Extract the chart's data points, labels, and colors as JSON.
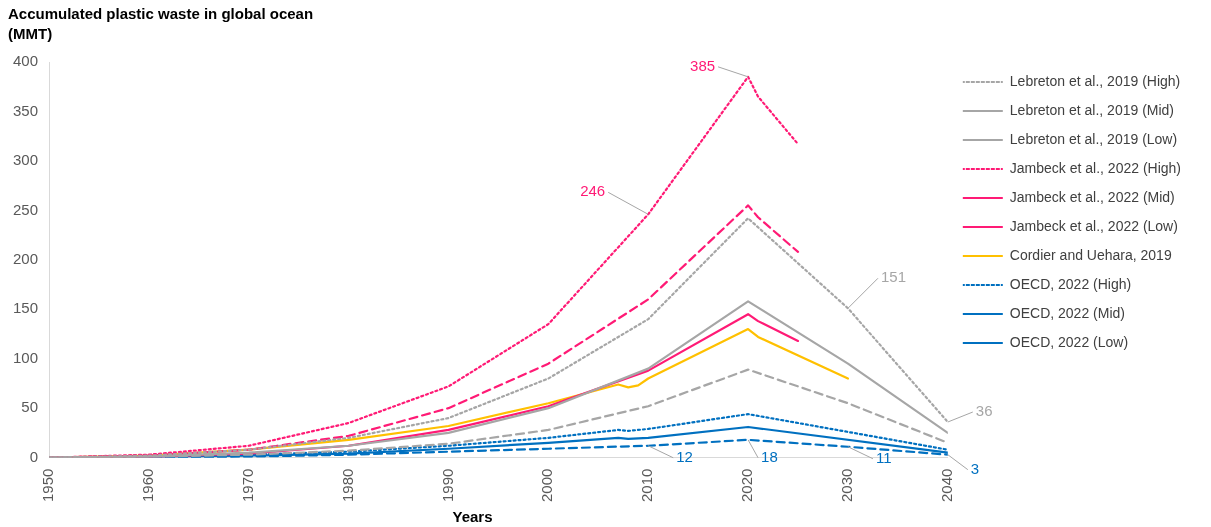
{
  "chart_data": {
    "type": "line",
    "ylabel": "Accumulated plastic waste in global ocean (MMT)",
    "xlabel": "Years",
    "xlim": [
      1950,
      2040
    ],
    "xticks": [
      1950,
      1960,
      1970,
      1980,
      1990,
      2000,
      2010,
      2020,
      2030,
      2040
    ],
    "ylim": [
      0,
      400
    ],
    "yticks": [
      0,
      50,
      100,
      150,
      200,
      250,
      300,
      350,
      400
    ],
    "grid": false,
    "legend": "right",
    "marker": "none",
    "series": [
      {
        "name": "Lebreton et al., 2019 (High)",
        "color": "#a6a6a6",
        "line_style": "dotted",
        "x": [
          1950,
          1960,
          1970,
          1980,
          1990,
          2000,
          2010,
          2020,
          2030,
          2040
        ],
        "values": [
          0,
          2,
          8,
          20,
          40,
          80,
          140,
          242,
          151,
          36
        ]
      },
      {
        "name": "Lebreton et al., 2019 (Mid)",
        "color": "#a6a6a6",
        "line_style": "solid",
        "x": [
          1950,
          1960,
          1970,
          1980,
          1990,
          2000,
          2010,
          2020,
          2030,
          2040
        ],
        "values": [
          0,
          1,
          5,
          12,
          25,
          50,
          90,
          158,
          95,
          25
        ]
      },
      {
        "name": "Lebreton et al., 2019 (Low)",
        "color": "#a6a6a6",
        "line_style": "dashed",
        "x": [
          1950,
          1960,
          1970,
          1980,
          1990,
          2000,
          2010,
          2020,
          2030,
          2040
        ],
        "values": [
          0,
          1,
          3,
          7,
          14,
          28,
          52,
          89,
          55,
          15
        ]
      },
      {
        "name": "Jambeck et al., 2022 (High)",
        "color": "#ff1a75",
        "line_style": "dotted",
        "x": [
          1950,
          1960,
          1970,
          1980,
          1990,
          2000,
          2010,
          2020,
          2021,
          2025
        ],
        "values": [
          0,
          3,
          12,
          35,
          72,
          135,
          246,
          385,
          365,
          317
        ]
      },
      {
        "name": "Jambeck et al., 2022 (Mid)",
        "color": "#ff1a75",
        "line_style": "dashed",
        "x": [
          1950,
          1960,
          1970,
          1980,
          1990,
          2000,
          2010,
          2020,
          2021,
          2025
        ],
        "values": [
          0,
          2,
          8,
          22,
          50,
          95,
          160,
          255,
          243,
          208
        ]
      },
      {
        "name": "Jambeck et al., 2022 (Low)",
        "color": "#ff1a75",
        "line_style": "solid",
        "x": [
          1950,
          1960,
          1970,
          1980,
          1990,
          2000,
          2010,
          2020,
          2021,
          2025
        ],
        "values": [
          0,
          1,
          4,
          12,
          28,
          52,
          88,
          145,
          138,
          118
        ]
      },
      {
        "name": "Cordier and Uehara, 2019",
        "color": "#ffc000",
        "line_style": "solid",
        "x": [
          1950,
          1960,
          1970,
          1980,
          1990,
          2000,
          2007,
          2008,
          2009,
          2010,
          2020,
          2021,
          2030
        ],
        "values": [
          0,
          2,
          8,
          18,
          32,
          55,
          74,
          71,
          73,
          80,
          130,
          122,
          80
        ]
      },
      {
        "name": "OECD, 2022 (High)",
        "color": "#0070c0",
        "line_style": "dotted",
        "x": [
          1950,
          1970,
          1980,
          1990,
          2000,
          2007,
          2008,
          2010,
          2020,
          2040
        ],
        "values": [
          0,
          3,
          6,
          12,
          20,
          28,
          27,
          29,
          44,
          8
        ]
      },
      {
        "name": "OECD, 2022 (Mid)",
        "color": "#0070c0",
        "line_style": "solid",
        "x": [
          1950,
          1970,
          1980,
          1990,
          2000,
          2007,
          2008,
          2010,
          2020,
          2040
        ],
        "values": [
          0,
          2,
          4,
          9,
          15,
          20,
          19,
          20,
          31,
          5
        ]
      },
      {
        "name": "OECD, 2022 (Low)",
        "color": "#0070c0",
        "line_style": "dashed",
        "x": [
          1950,
          1960,
          1970,
          1980,
          1990,
          2000,
          2010,
          2020,
          2030,
          2040
        ],
        "values": [
          0,
          0,
          1,
          3,
          6,
          9,
          12,
          18,
          11,
          3
        ]
      }
    ],
    "annotations": [
      {
        "text": "385",
        "x": 2020,
        "y": 385
      },
      {
        "text": "246",
        "x": 2010,
        "y": 246
      },
      {
        "text": "151",
        "x": 2030,
        "y": 151
      },
      {
        "text": "36",
        "x": 2040,
        "y": 36
      },
      {
        "text": "12",
        "x": 2010,
        "y": 12
      },
      {
        "text": "18",
        "x": 2020,
        "y": 18
      },
      {
        "text": "11",
        "x": 2030,
        "y": 11
      },
      {
        "text": "3",
        "x": 2040,
        "y": 3
      }
    ]
  }
}
